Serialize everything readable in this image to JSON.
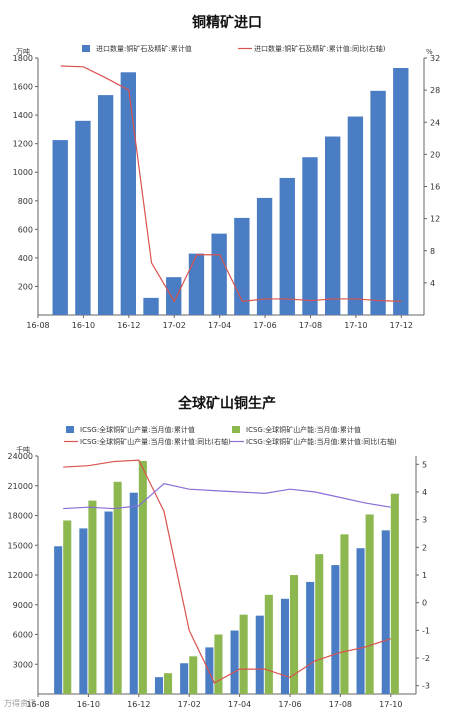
{
  "chart_data": [
    {
      "type": "bar",
      "title": "铜精矿进口",
      "left_unit": "万吨",
      "right_unit": "%",
      "x_tick_labels": [
        "16-08",
        "16-10",
        "16-12",
        "17-02",
        "17-04",
        "17-06",
        "17-08",
        "17-10",
        "17-12"
      ],
      "ylim": [
        0,
        1800
      ],
      "y_ticks": [
        200,
        400,
        600,
        800,
        1000,
        1200,
        1400,
        1600,
        1800
      ],
      "y2lim": [
        0,
        32
      ],
      "y2_ticks": [
        4,
        8,
        12,
        16,
        20,
        24,
        28,
        32
      ],
      "categories": [
        "16-09",
        "16-10",
        "16-11",
        "16-12",
        "17-01",
        "17-02",
        "17-03",
        "17-04",
        "17-05",
        "17-06",
        "17-07",
        "17-08",
        "17-09",
        "17-10",
        "17-11",
        "17-12"
      ],
      "series": [
        {
          "name": "进口数量:铜矿石及精矿:累计值",
          "kind": "bar",
          "axis": "left",
          "color": "#4a7dc4",
          "values": [
            1225,
            1360,
            1540,
            1700,
            120,
            265,
            430,
            570,
            680,
            820,
            960,
            1105,
            1250,
            1390,
            1570,
            1730
          ]
        },
        {
          "name": "进口数量:铜矿石及精矿:累计值:同比(右轴)",
          "kind": "line",
          "axis": "right",
          "color": "#d9534f",
          "values": [
            31,
            30.9,
            29.5,
            28,
            6.5,
            1.7,
            7.5,
            7.5,
            1.7,
            2,
            2,
            1.8,
            2,
            2,
            1.8,
            1.7
          ]
        }
      ]
    },
    {
      "type": "bar",
      "title": "全球矿山铜生产",
      "left_unit": "千吨",
      "x_tick_labels": [
        "16-08",
        "16-10",
        "16-12",
        "17-02",
        "17-04",
        "17-06",
        "17-08",
        "17-10"
      ],
      "ylim": [
        0,
        24000
      ],
      "y_ticks": [
        3000,
        6000,
        9000,
        12000,
        15000,
        18000,
        21000,
        24000
      ],
      "y2lim": [
        -3.3,
        5.3
      ],
      "y2_ticks": [
        -3,
        -2,
        -1,
        0,
        1,
        2,
        3,
        4,
        5
      ],
      "categories": [
        "16-09",
        "16-10",
        "16-11",
        "16-12",
        "17-01",
        "17-02",
        "17-03",
        "17-04",
        "17-05",
        "17-06",
        "17-07",
        "17-08",
        "17-09",
        "17-10"
      ],
      "series": [
        {
          "name": "ICSG:全球铜矿山产量:当月值:累计值",
          "kind": "bar",
          "axis": "left",
          "color": "#4a7dc4",
          "values": [
            14900,
            16700,
            18400,
            20300,
            1700,
            3100,
            4700,
            6400,
            7900,
            9600,
            11300,
            13000,
            14700,
            16500
          ]
        },
        {
          "name": "ICSG:全球铜矿山产能:当月值:累计值",
          "kind": "bar",
          "axis": "left",
          "color": "#8cb84f",
          "values": [
            17500,
            19500,
            21400,
            23500,
            2100,
            3800,
            6000,
            8000,
            10000,
            12000,
            14100,
            16100,
            18100,
            20200
          ]
        },
        {
          "name": "ICSG:全球铜矿山产量:当月值:累计值:同比(右轴)",
          "kind": "line",
          "axis": "right",
          "color": "#d9534f",
          "values": [
            4.9,
            4.95,
            5.1,
            5.15,
            3.3,
            -1,
            -2.9,
            -2.4,
            -2.4,
            -2.7,
            -2.1,
            -1.8,
            -1.6,
            -1.3
          ]
        },
        {
          "name": "ICSG:全球铜矿山产能:当月值:累计值:同比(右轴)",
          "kind": "line",
          "axis": "right",
          "color": "#8a6fd6",
          "values": [
            3.4,
            3.45,
            3.4,
            3.5,
            4.3,
            4.1,
            4.05,
            4.0,
            3.95,
            4.1,
            4.0,
            3.8,
            3.6,
            3.45
          ]
        }
      ]
    }
  ],
  "watermark": "万得资讯"
}
